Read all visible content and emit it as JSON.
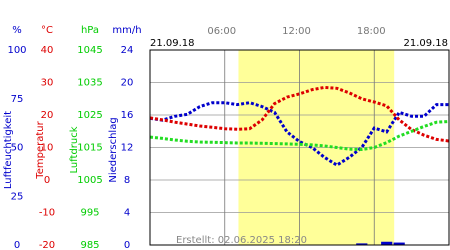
{
  "chart_data": {
    "type": "line",
    "date_left": "21.09.18",
    "date_right": "21.09.18",
    "note": "Erstellt: 02.06.2025 18:20",
    "xlim": [
      0,
      24
    ],
    "xticks": [
      {
        "value": 6,
        "label": "06:00"
      },
      {
        "value": 12,
        "label": "12:00"
      },
      {
        "value": 18,
        "label": "18:00"
      }
    ],
    "shade": {
      "xlim": [
        7.1,
        19.6
      ],
      "color": "#ffff99"
    },
    "grid": true,
    "axes": [
      {
        "unit": "%",
        "label": "Luftfeuchtigkeit",
        "color": "#0000cc",
        "ylim": [
          0,
          100
        ],
        "yticks": [
          100,
          75,
          50,
          25,
          0
        ]
      },
      {
        "unit": "°C",
        "label": "Temperatur",
        "color": "#dd0000",
        "ylim": [
          -20,
          40
        ],
        "yticks": [
          40,
          30,
          20,
          10,
          0,
          -10,
          -20
        ]
      },
      {
        "unit": "hPa",
        "label": "Luftdruck",
        "color": "#00cc00",
        "ylim": [
          985,
          1045
        ],
        "yticks": [
          1045,
          1035,
          1025,
          1015,
          1005,
          995,
          985
        ]
      },
      {
        "unit": "mm/h",
        "label": "Niederschlag",
        "color": "#0000cc",
        "ylim": [
          0,
          24
        ],
        "yticks": [
          24,
          20,
          16,
          12,
          8,
          4,
          0
        ]
      }
    ],
    "x": [
      0,
      1,
      2,
      3,
      4,
      5,
      6,
      7,
      8,
      9,
      10,
      11,
      12,
      13,
      14,
      15,
      16,
      17,
      18,
      19,
      20,
      21,
      22,
      23,
      24
    ],
    "series": [
      {
        "axis": "%",
        "color": "#0000cc",
        "values": [
          65,
          64,
          66,
          67,
          71,
          73,
          73,
          72,
          73,
          71,
          68,
          58,
          53,
          50,
          45,
          41,
          45,
          50,
          60,
          58,
          68,
          66,
          66,
          72,
          72
        ]
      },
      {
        "axis": "°C",
        "color": "#dd0000",
        "values": [
          19.1,
          18.5,
          17.8,
          17.2,
          16.6,
          16.2,
          15.8,
          15.6,
          15.8,
          18.5,
          23.5,
          25.5,
          26.5,
          27.8,
          28.5,
          28.2,
          26.8,
          25.0,
          24.0,
          22.8,
          18.5,
          15.5,
          13.8,
          12.5,
          12.0
        ]
      },
      {
        "axis": "hPa",
        "color": "#22dd22",
        "values": [
          1018.2,
          1017.8,
          1017.3,
          1016.9,
          1016.7,
          1016.6,
          1016.5,
          1016.4,
          1016.4,
          1016.3,
          1016.2,
          1016.1,
          1016,
          1015.8,
          1015.5,
          1015,
          1014.5,
          1014.4,
          1015,
          1016.5,
          1018.5,
          1020,
          1021.5,
          1022.8,
          1023
        ]
      },
      {
        "axis": "mm/h",
        "color": "#0000cc",
        "bars": true,
        "values": [
          0,
          0,
          0,
          0,
          0,
          0,
          0,
          0,
          0,
          0,
          0,
          0,
          0,
          0,
          0,
          0,
          0,
          0.2,
          0,
          0.4,
          0.3,
          0,
          0,
          0,
          0
        ]
      }
    ]
  }
}
